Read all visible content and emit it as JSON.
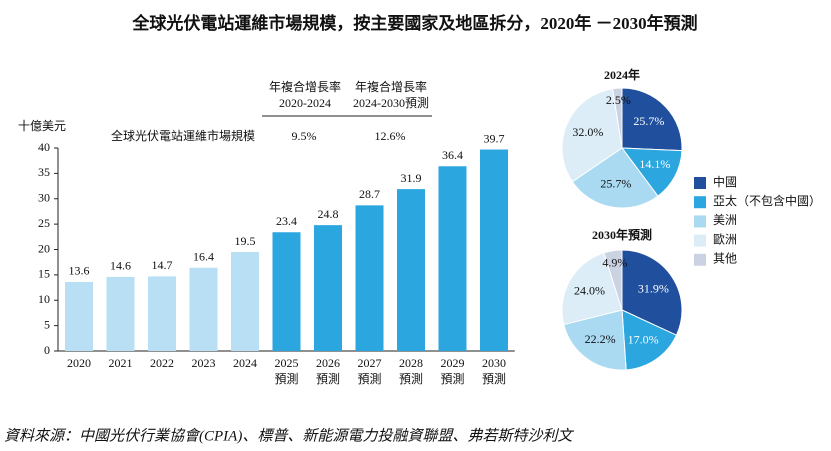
{
  "title": "全球光伏電站運維市場規模，按主要國家及地區拆分，2020年 －2030年預測",
  "source": "資料來源：中國光伏行業協會(CPIA)、標普、新能源電力投融資聯盟、弗若斯特沙利文",
  "cagr_table": {
    "headers": [
      "年複合增長率\n2020-2024",
      "年複合增長率\n2024-2030預測"
    ],
    "row_label": "全球光伏電站運維市場規模",
    "values": [
      "9.5%",
      "12.6%"
    ]
  },
  "chart_data": [
    {
      "type": "bar",
      "y_label": "十億美元",
      "categories": [
        "2020",
        "2021",
        "2022",
        "2023",
        "2024",
        "2025\n預測",
        "2026\n預測",
        "2027\n預測",
        "2028\n預測",
        "2029\n預測",
        "2030\n預測"
      ],
      "values": [
        13.6,
        14.6,
        14.7,
        16.4,
        19.5,
        23.4,
        24.8,
        28.7,
        31.9,
        36.4,
        39.7
      ],
      "colors": [
        "#b8dff3",
        "#b8dff3",
        "#b8dff3",
        "#b8dff3",
        "#b8dff3",
        "#2ba6df",
        "#2ba6df",
        "#2ba6df",
        "#2ba6df",
        "#2ba6df",
        "#2ba6df"
      ],
      "ylim": [
        0,
        40
      ],
      "yticks": [
        0,
        5,
        10,
        15,
        20,
        25,
        30,
        35,
        40
      ]
    },
    {
      "type": "pie",
      "title": "2024年",
      "categories": [
        "中國",
        "亞太（不包含中國）",
        "美洲",
        "歐洲",
        "其他"
      ],
      "values": [
        25.7,
        14.1,
        25.7,
        32.0,
        2.5
      ],
      "value_labels": [
        "25.7%",
        "14.1%",
        "25.7%",
        "32.0%",
        "2.5%"
      ],
      "colors": [
        "#1f4f9d",
        "#2ba6df",
        "#a9daf2",
        "#dcedf7",
        "#cbd2e2"
      ]
    },
    {
      "type": "pie",
      "title": "2030年預測",
      "categories": [
        "中國",
        "亞太（不包含中國）",
        "美洲",
        "歐洲",
        "其他"
      ],
      "values": [
        31.9,
        17.0,
        22.2,
        24.0,
        4.9
      ],
      "value_labels": [
        "31.9%",
        "17.0%",
        "22.2%",
        "24.0%",
        "4.9%"
      ],
      "colors": [
        "#1f4f9d",
        "#2ba6df",
        "#a9daf2",
        "#dcedf7",
        "#cbd2e2"
      ]
    }
  ]
}
